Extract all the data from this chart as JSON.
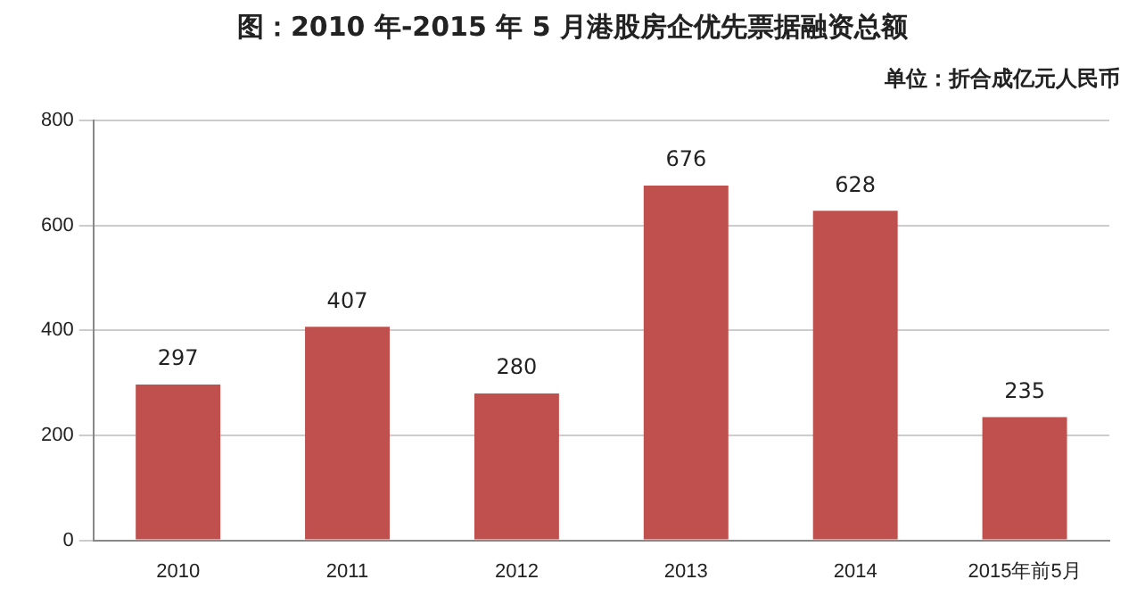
{
  "chart_data": {
    "type": "bar",
    "title": "图：2010 年-2015 年 5 月港股房企优先票据融资总额",
    "subtitle": "单位：折合成亿元人民币",
    "categories": [
      "2010",
      "2011",
      "2012",
      "2013",
      "2014",
      "2015年前5月"
    ],
    "values": [
      297,
      407,
      280,
      676,
      628,
      235
    ],
    "color": "#c0504d",
    "ylim": [
      0,
      800
    ],
    "yticks": [
      0,
      200,
      400,
      600,
      800
    ],
    "grid": "y",
    "data_labels": true
  }
}
